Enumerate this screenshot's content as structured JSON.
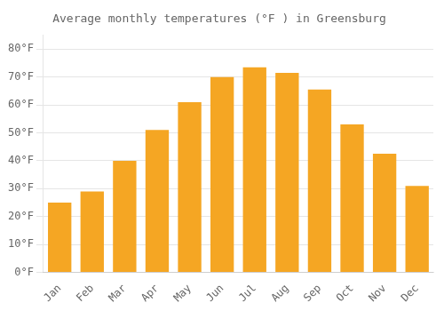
{
  "chart_data": {
    "type": "bar",
    "title": "Average monthly temperatures (°F ) in Greensburg",
    "categories": [
      "Jan",
      "Feb",
      "Mar",
      "Apr",
      "May",
      "Jun",
      "Jul",
      "Aug",
      "Sep",
      "Oct",
      "Nov",
      "Dec"
    ],
    "values": [
      25,
      29,
      40,
      51,
      61,
      70,
      73.5,
      71.5,
      65.5,
      53,
      42.5,
      31
    ],
    "color": "#F5A623",
    "ylim": [
      0,
      85
    ],
    "yticks": [
      {
        "value": 0,
        "label": "0°F"
      },
      {
        "value": 10,
        "label": "10°F"
      },
      {
        "value": 20,
        "label": "20°F"
      },
      {
        "value": 30,
        "label": "30°F"
      },
      {
        "value": 40,
        "label": "40°F"
      },
      {
        "value": 50,
        "label": "50°F"
      },
      {
        "value": 60,
        "label": "60°F"
      },
      {
        "value": 70,
        "label": "70°F"
      },
      {
        "value": 80,
        "label": "80°F"
      }
    ],
    "grid": true
  }
}
